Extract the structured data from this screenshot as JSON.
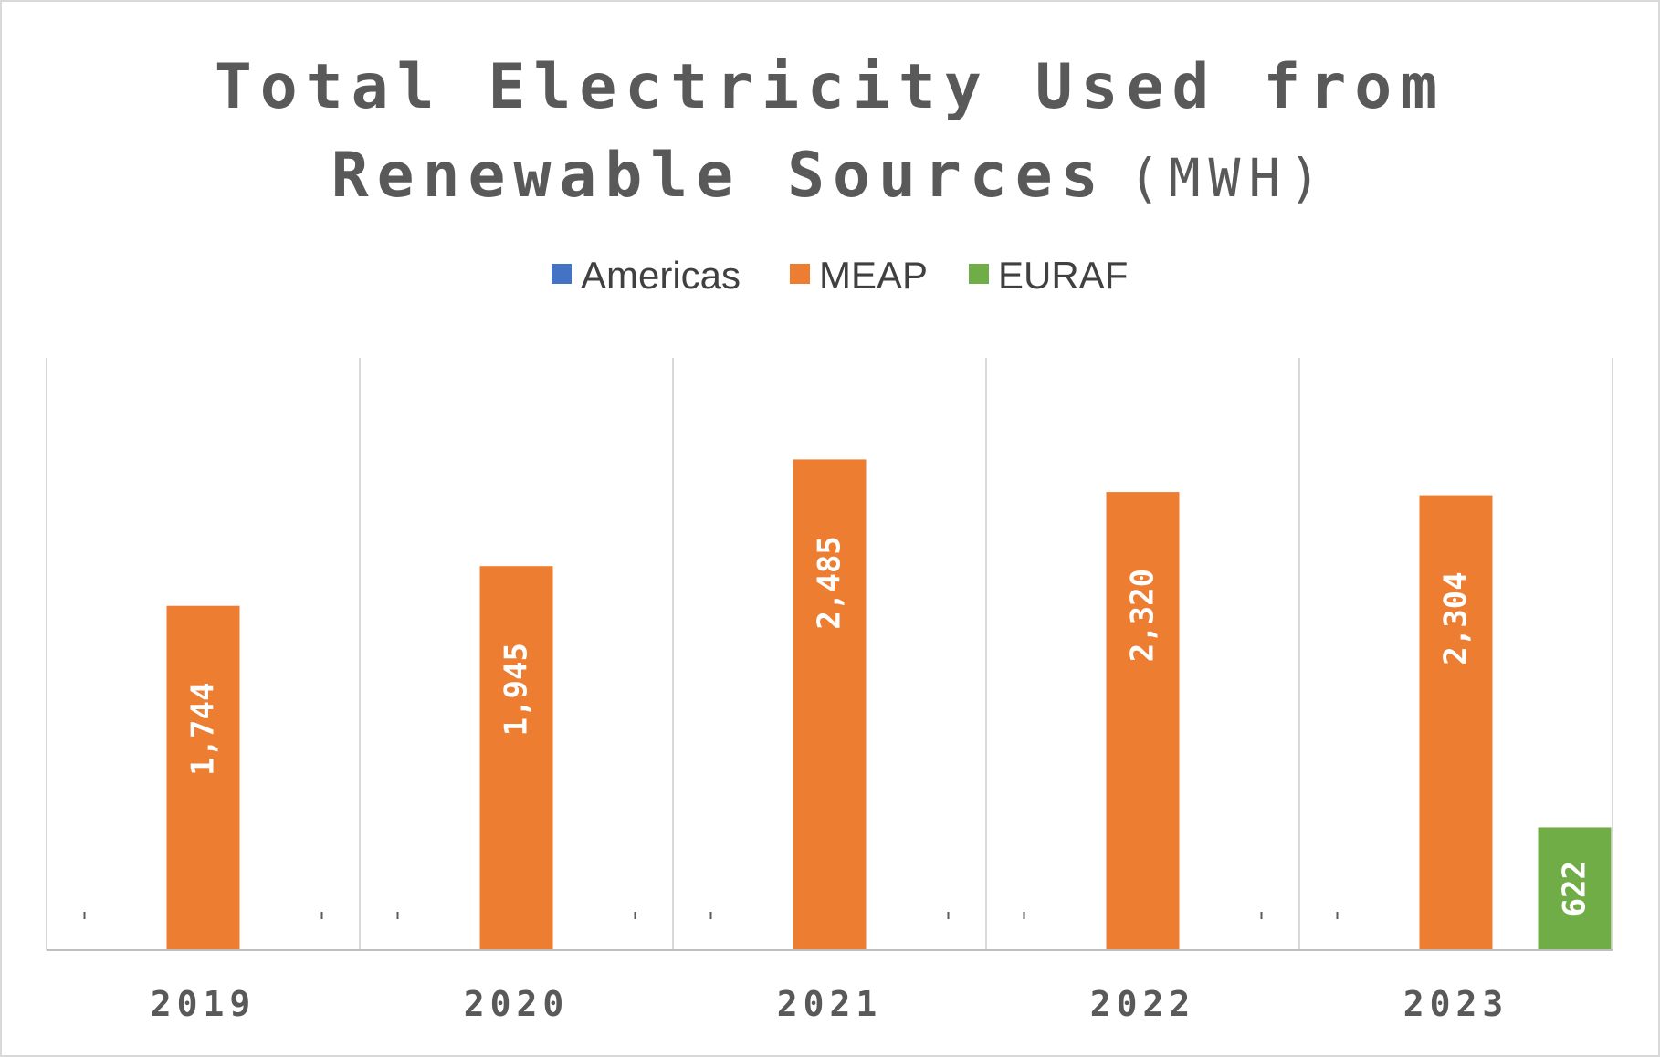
{
  "chart_data": {
    "type": "bar",
    "title": "Total Electricity Used from Renewable Sources",
    "title_unit": "(MWH)",
    "categories": [
      "2019",
      "2020",
      "2021",
      "2022",
      "2023"
    ],
    "series": [
      {
        "name": "Americas",
        "color": "#4472c4",
        "values": [
          0,
          0,
          0,
          0,
          0
        ]
      },
      {
        "name": "MEAP",
        "color": "#ed7d31",
        "values": [
          1744,
          1945,
          2485,
          2320,
          2304
        ]
      },
      {
        "name": "EURAF",
        "color": "#70ad47",
        "values": [
          0,
          0,
          0,
          0,
          622
        ]
      }
    ],
    "data_labels": [
      [
        "",
        "",
        ""
      ],
      [
        "",
        "",
        ""
      ],
      [
        "",
        "",
        ""
      ],
      [
        "",
        "",
        ""
      ],
      [
        "",
        "",
        "622"
      ]
    ],
    "meap_labels": [
      "1,744",
      "1,945",
      "2,485",
      "2,320",
      "2,304"
    ],
    "ylim": [
      0,
      3000
    ],
    "y_axis_visible": false,
    "grid": "vertical category separators",
    "legend_position": "top"
  }
}
